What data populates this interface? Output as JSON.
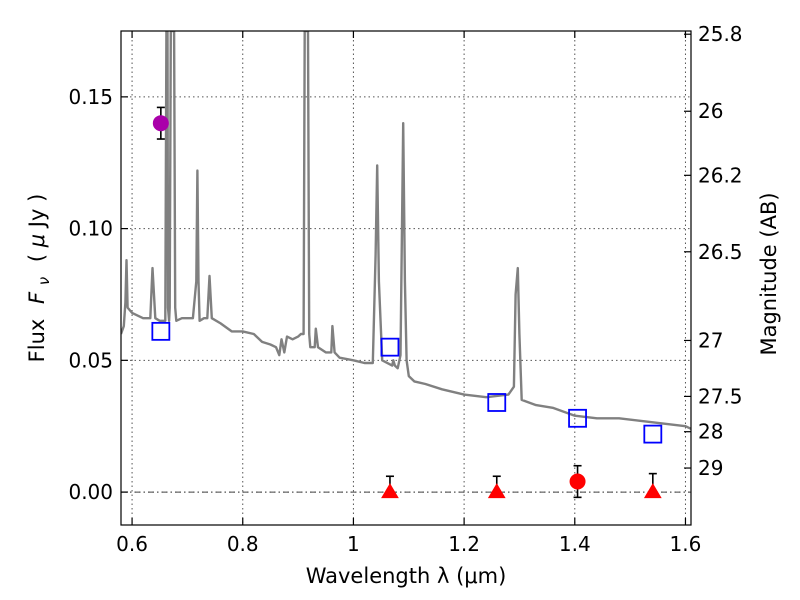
{
  "chart_data": {
    "type": "scatter",
    "xlabel": "Wavelength  λ (μm)",
    "ylabel": "Flux  Fν  ( μJy )",
    "ylabel_parts": {
      "prefix": "Flux",
      "symbol": "F",
      "subscript": "ν",
      "unit_open": "( ",
      "unit_mu": "μ",
      "unit_rest": "Jy )"
    },
    "y2label": "Magnitude (AB)",
    "xlim": [
      0.58,
      1.61
    ],
    "ylim": [
      -0.0125,
      0.175
    ],
    "grid": true,
    "x_ticks": [
      {
        "value": 0.6,
        "label": "0.6"
      },
      {
        "value": 0.8,
        "label": "0.8"
      },
      {
        "value": 1.0,
        "label": "1"
      },
      {
        "value": 1.2,
        "label": "1.2"
      },
      {
        "value": 1.4,
        "label": "1.4"
      },
      {
        "value": 1.6,
        "label": "1.6"
      }
    ],
    "y_ticks": [
      {
        "value": 0.0,
        "label": "0.00"
      },
      {
        "value": 0.05,
        "label": "0.05"
      },
      {
        "value": 0.1,
        "label": "0.10"
      },
      {
        "value": 0.15,
        "label": "0.15"
      }
    ],
    "y2_ticks": [
      {
        "label": "25.8",
        "magnitude": 25.8
      },
      {
        "label": "26",
        "magnitude": 26
      },
      {
        "label": "26.2",
        "magnitude": 26.2
      },
      {
        "label": "26.5",
        "magnitude": 26.5
      },
      {
        "label": "27",
        "magnitude": 27
      },
      {
        "label": "27.5",
        "magnitude": 27.5
      },
      {
        "label": "28",
        "magnitude": 28
      },
      {
        "label": "29",
        "magnitude": 29
      }
    ],
    "zero_line": 0.0,
    "colors": {
      "model": "#808080",
      "model_boxes": "#0000ff",
      "upper_point": "#aa00aa",
      "detections": "#ff0000",
      "grid": "#555555"
    },
    "model_spectrum": {
      "x": [
        0.58,
        0.585,
        0.588,
        0.59,
        0.592,
        0.6,
        0.62,
        0.633,
        0.637,
        0.642,
        0.65,
        0.66,
        0.662,
        0.664,
        0.665,
        0.667,
        0.668,
        0.67,
        0.671,
        0.673,
        0.676,
        0.678,
        0.68,
        0.69,
        0.71,
        0.716,
        0.718,
        0.72,
        0.722,
        0.73,
        0.736,
        0.74,
        0.744,
        0.76,
        0.78,
        0.8,
        0.82,
        0.835,
        0.85,
        0.86,
        0.866,
        0.87,
        0.875,
        0.88,
        0.89,
        0.9,
        0.905,
        0.91,
        0.912,
        0.915,
        0.918,
        0.92,
        0.922,
        0.93,
        0.932,
        0.936,
        0.95,
        0.96,
        0.962,
        0.966,
        0.975,
        1.0,
        1.02,
        1.035,
        1.04,
        1.043,
        1.046,
        1.052,
        1.07,
        1.072,
        1.075,
        1.08,
        1.085,
        1.09,
        1.093,
        1.096,
        1.1,
        1.11,
        1.13,
        1.16,
        1.2,
        1.24,
        1.28,
        1.29,
        1.293,
        1.297,
        1.3,
        1.304,
        1.33,
        1.36,
        1.4,
        1.44,
        1.48,
        1.52,
        1.56,
        1.6,
        1.61
      ],
      "y": [
        0.06,
        0.063,
        0.072,
        0.088,
        0.07,
        0.068,
        0.066,
        0.066,
        0.085,
        0.066,
        0.065,
        0.065,
        0.175,
        0.175,
        0.07,
        0.065,
        0.07,
        0.175,
        0.175,
        0.175,
        0.175,
        0.07,
        0.065,
        0.066,
        0.066,
        0.08,
        0.122,
        0.08,
        0.065,
        0.066,
        0.066,
        0.082,
        0.066,
        0.064,
        0.061,
        0.061,
        0.06,
        0.057,
        0.056,
        0.055,
        0.052,
        0.058,
        0.053,
        0.059,
        0.058,
        0.059,
        0.06,
        0.06,
        0.175,
        0.175,
        0.175,
        0.06,
        0.055,
        0.055,
        0.062,
        0.055,
        0.053,
        0.053,
        0.063,
        0.053,
        0.051,
        0.05,
        0.049,
        0.049,
        0.09,
        0.124,
        0.08,
        0.05,
        0.048,
        0.05,
        0.048,
        0.047,
        0.052,
        0.14,
        0.08,
        0.05,
        0.044,
        0.042,
        0.041,
        0.039,
        0.037,
        0.036,
        0.037,
        0.04,
        0.075,
        0.085,
        0.06,
        0.035,
        0.033,
        0.032,
        0.029,
        0.028,
        0.028,
        0.027,
        0.026,
        0.025,
        0.024
      ]
    },
    "model_boxes": {
      "x": [
        0.652,
        1.066,
        1.259,
        1.405,
        1.541
      ],
      "y": [
        0.061,
        0.055,
        0.034,
        0.028,
        0.022
      ]
    },
    "upper_point": {
      "x": 0.652,
      "y": 0.14,
      "err": 0.006
    },
    "detection_circle": {
      "x": 1.405,
      "y": 0.004,
      "err": 0.006
    },
    "detection_triangles": {
      "x": [
        1.066,
        1.259,
        1.541
      ],
      "y": [
        0.0,
        0.0,
        0.0
      ],
      "err_top": [
        0.006,
        0.006,
        0.007
      ]
    }
  }
}
